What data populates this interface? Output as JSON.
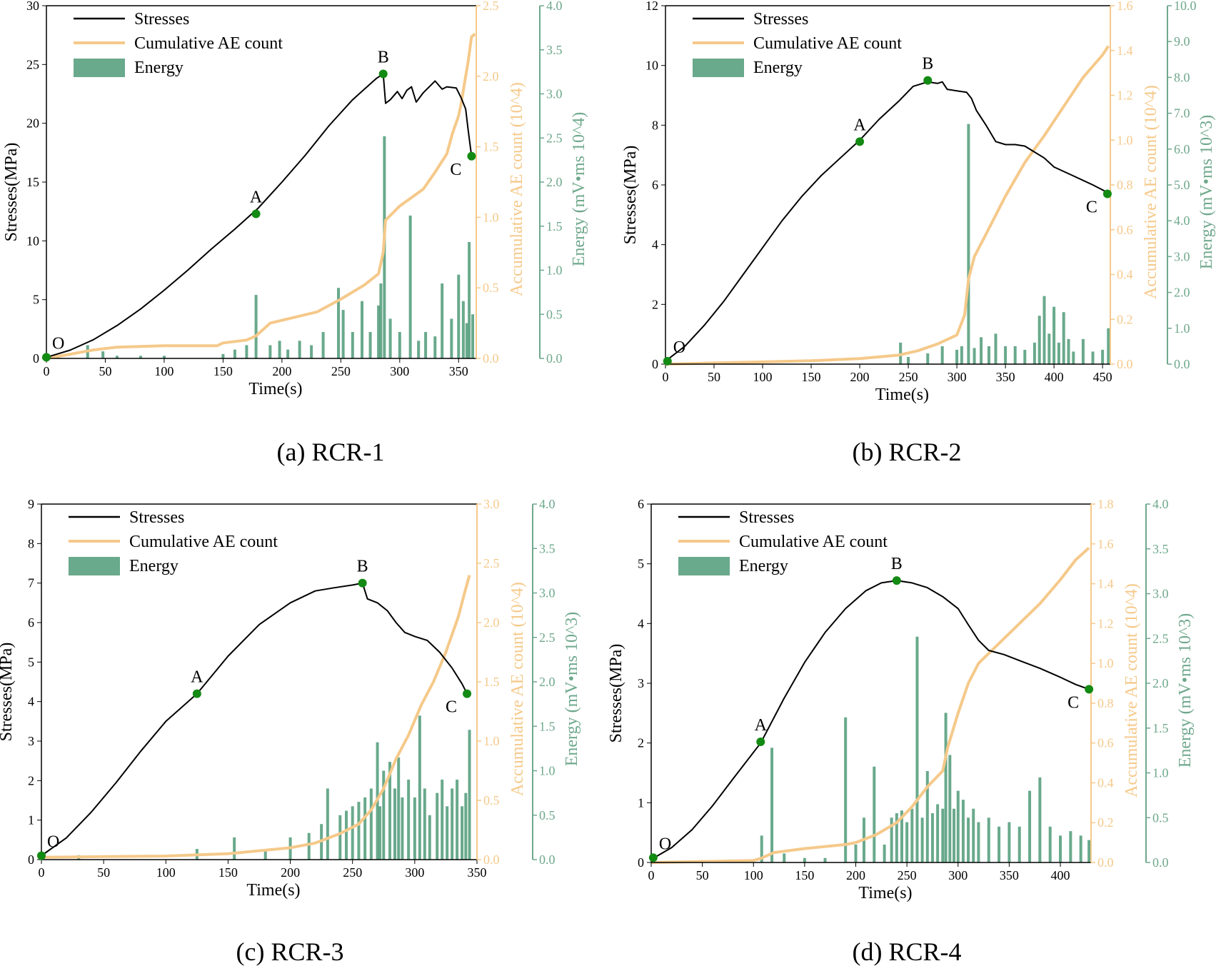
{
  "colors": {
    "stress": "#000000",
    "cumulative": "#f5c98a",
    "energy": "#6fa88c",
    "energy_fill": "#4f9a78",
    "point": "#138a13"
  },
  "chart_data": [
    {
      "type": "line",
      "caption": "(a)  RCR-1",
      "xlabel": "Time(s)",
      "ylabel": "Stresses(MPa)",
      "y2label": "Accumulative AE count (10^4)",
      "y3label": "Energy (mV•ms 10^4)",
      "xlim": [
        0,
        365
      ],
      "xticks": [
        0,
        50,
        100,
        150,
        200,
        250,
        300,
        350
      ],
      "ylim": [
        0,
        30
      ],
      "yticks": [
        0,
        5,
        10,
        15,
        20,
        25,
        30
      ],
      "y2lim": [
        0,
        2.5
      ],
      "y2ticks": [
        "0.0",
        "0.5",
        "1.0",
        "1.5",
        "2.0",
        "2.5"
      ],
      "y3lim": [
        0,
        4.0
      ],
      "y3ticks": [
        "0.0",
        "0.5",
        "1.0",
        "1.5",
        "2.0",
        "2.5",
        "3.0",
        "3.5",
        "4.0"
      ],
      "legend": [
        "Stresses",
        "Cumulative AE count",
        "Energy"
      ],
      "legend_position": "top-left",
      "series": [
        {
          "name": "Stresses",
          "axis": "left",
          "x": [
            0,
            20,
            40,
            60,
            80,
            100,
            120,
            140,
            160,
            180,
            200,
            220,
            240,
            260,
            280,
            286,
            288,
            292,
            298,
            302,
            306,
            310,
            314,
            320,
            330,
            336,
            340,
            348,
            352,
            356,
            358,
            361
          ],
          "y": [
            0.1,
            0.7,
            1.6,
            2.8,
            4.2,
            5.8,
            7.5,
            9.3,
            11.0,
            12.8,
            15.0,
            17.3,
            19.8,
            22.0,
            23.8,
            24.2,
            21.7,
            22.0,
            22.7,
            22.1,
            22.8,
            23.1,
            21.8,
            22.6,
            23.6,
            22.9,
            23.1,
            23.0,
            22.2,
            21.2,
            19.5,
            17.2
          ]
        },
        {
          "name": "Cumulative AE count",
          "axis": "right",
          "x": [
            0,
            20,
            40,
            60,
            100,
            145,
            150,
            170,
            178,
            190,
            210,
            230,
            250,
            270,
            282,
            286,
            288,
            300,
            320,
            330,
            340,
            345,
            350,
            352,
            355,
            358,
            361,
            364
          ],
          "y": [
            0,
            0.03,
            0.06,
            0.08,
            0.09,
            0.09,
            0.11,
            0.13,
            0.16,
            0.25,
            0.29,
            0.33,
            0.42,
            0.52,
            0.6,
            0.75,
            0.98,
            1.08,
            1.2,
            1.32,
            1.45,
            1.6,
            1.72,
            1.8,
            1.95,
            2.1,
            2.28,
            2.3
          ]
        },
        {
          "name": "Energy",
          "axis": "right2",
          "type": "bar",
          "x": [
            10,
            35,
            48,
            60,
            80,
            100,
            150,
            160,
            170,
            178,
            190,
            198,
            205,
            215,
            225,
            235,
            248,
            252,
            260,
            268,
            275,
            282,
            284,
            287,
            292,
            300,
            309,
            316,
            322,
            330,
            336,
            344,
            350,
            354,
            357,
            359,
            362
          ],
          "y": [
            0.02,
            0.15,
            0.08,
            0.03,
            0.03,
            0.03,
            0.05,
            0.1,
            0.15,
            0.72,
            0.15,
            0.2,
            0.1,
            0.2,
            0.15,
            0.3,
            0.8,
            0.55,
            0.3,
            0.65,
            0.3,
            0.6,
            0.85,
            2.52,
            0.45,
            0.3,
            1.62,
            0.2,
            0.3,
            0.25,
            0.85,
            0.45,
            0.95,
            0.65,
            0.4,
            1.32,
            0.5
          ]
        }
      ],
      "points": [
        {
          "label": "O",
          "x": 0,
          "y": 0.1
        },
        {
          "label": "A",
          "x": 178,
          "y": 12.3
        },
        {
          "label": "B",
          "x": 286,
          "y": 24.2
        },
        {
          "label": "C",
          "x": 361,
          "y": 17.2
        }
      ]
    },
    {
      "type": "line",
      "caption": "(b)  RCR-2",
      "xlabel": "Time(s)",
      "ylabel": "Stresses(MPa)",
      "y2label": "Accumulative AE count (10^4)",
      "y3label": "Energy (mV•ms 10^3)",
      "xlim": [
        0,
        458
      ],
      "xticks": [
        0,
        50,
        100,
        150,
        200,
        250,
        300,
        350,
        400,
        450
      ],
      "ylim": [
        0,
        12
      ],
      "yticks": [
        0,
        2,
        4,
        6,
        8,
        10,
        12
      ],
      "y2lim": [
        0,
        1.6
      ],
      "y2ticks": [
        "0.0",
        "0.2",
        "0.4",
        "0.6",
        "0.8",
        "1.0",
        "1.2",
        "1.4",
        "1.6"
      ],
      "y3lim": [
        0,
        10.0
      ],
      "y3ticks": [
        "0.0",
        "1.0",
        "2.0",
        "3.0",
        "4.0",
        "5.0",
        "6.0",
        "7.0",
        "8.0",
        "9.0",
        "10.0"
      ],
      "legend": [
        "Stresses",
        "Cumulative AE count",
        "Energy"
      ],
      "legend_position": "top-left",
      "series": [
        {
          "name": "Stresses",
          "axis": "left",
          "x": [
            0,
            20,
            40,
            60,
            80,
            100,
            120,
            140,
            160,
            180,
            200,
            220,
            240,
            255,
            270,
            280,
            285,
            290,
            300,
            310,
            315,
            320,
            330,
            340,
            350,
            360,
            370,
            380,
            390,
            400,
            420,
            440,
            455
          ],
          "y": [
            0.1,
            0.6,
            1.3,
            2.1,
            3.0,
            3.9,
            4.8,
            5.6,
            6.3,
            6.9,
            7.5,
            8.2,
            8.8,
            9.3,
            9.45,
            9.4,
            9.45,
            9.2,
            9.15,
            9.1,
            8.9,
            8.5,
            8.0,
            7.45,
            7.35,
            7.35,
            7.3,
            7.1,
            6.9,
            6.6,
            6.3,
            6.0,
            5.75
          ]
        },
        {
          "name": "Cumulative AE count",
          "axis": "right",
          "x": [
            0,
            50,
            100,
            150,
            200,
            240,
            260,
            280,
            300,
            308,
            312,
            318,
            330,
            350,
            370,
            390,
            410,
            430,
            450,
            456
          ],
          "y": [
            0,
            0.005,
            0.01,
            0.015,
            0.025,
            0.04,
            0.06,
            0.09,
            0.13,
            0.22,
            0.38,
            0.48,
            0.58,
            0.75,
            0.9,
            1.02,
            1.15,
            1.28,
            1.38,
            1.42
          ]
        },
        {
          "name": "Energy",
          "axis": "right2",
          "type": "bar",
          "x": [
            5,
            242,
            250,
            270,
            285,
            300,
            305,
            312,
            318,
            325,
            333,
            340,
            350,
            360,
            370,
            380,
            385,
            390,
            395,
            400,
            405,
            410,
            415,
            420,
            430,
            440,
            450,
            456
          ],
          "y": [
            0.1,
            0.6,
            0.2,
            0.3,
            0.5,
            0.4,
            0.5,
            6.7,
            0.45,
            0.75,
            0.5,
            0.85,
            0.5,
            0.5,
            0.4,
            0.6,
            1.35,
            1.9,
            0.85,
            1.6,
            0.6,
            1.45,
            0.7,
            0.35,
            0.7,
            0.35,
            0.4,
            1.0
          ]
        }
      ],
      "points": [
        {
          "label": "O",
          "x": 2,
          "y": 0.1
        },
        {
          "label": "A",
          "x": 200,
          "y": 7.45
        },
        {
          "label": "B",
          "x": 270,
          "y": 9.5
        },
        {
          "label": "C",
          "x": 455,
          "y": 5.7
        }
      ]
    },
    {
      "type": "line",
      "caption": "(c)  RCR-3",
      "xlabel": "Time(s)",
      "ylabel": "Stresses(MPa)",
      "y2label": "Accumulative AE count (10^4)",
      "y3label": "Energy (mV•ms 10^3)",
      "xlim": [
        0,
        350
      ],
      "xticks": [
        0,
        50,
        100,
        150,
        200,
        250,
        300,
        350
      ],
      "ylim": [
        0,
        9
      ],
      "yticks": [
        0,
        1,
        2,
        3,
        4,
        5,
        6,
        7,
        8,
        9
      ],
      "y2lim": [
        0,
        3.0
      ],
      "y2ticks": [
        "0.0",
        "0.5",
        "1.0",
        "1.5",
        "2.0",
        "2.5",
        "3.0"
      ],
      "y3lim": [
        0,
        4.0
      ],
      "y3ticks": [
        "0.0",
        "0.5",
        "1.0",
        "1.5",
        "2.0",
        "2.5",
        "3.0",
        "3.5",
        "4.0"
      ],
      "legend": [
        "Stresses",
        "Cumulative AE count",
        "Energy"
      ],
      "legend_position": "top-left",
      "series": [
        {
          "name": "Stresses",
          "axis": "left",
          "x": [
            0,
            20,
            40,
            60,
            80,
            100,
            125,
            150,
            175,
            200,
            220,
            235,
            250,
            258,
            262,
            270,
            278,
            285,
            292,
            300,
            310,
            320,
            330,
            338,
            342
          ],
          "y": [
            0.1,
            0.55,
            1.2,
            1.95,
            2.75,
            3.5,
            4.2,
            5.15,
            5.95,
            6.5,
            6.8,
            6.88,
            6.95,
            7.0,
            6.6,
            6.5,
            6.3,
            6.0,
            5.75,
            5.65,
            5.55,
            5.25,
            4.85,
            4.45,
            4.2
          ]
        },
        {
          "name": "Cumulative AE count",
          "axis": "right",
          "x": [
            0,
            50,
            100,
            150,
            200,
            220,
            240,
            255,
            265,
            275,
            285,
            295,
            305,
            315,
            325,
            335,
            340,
            344
          ],
          "y": [
            0.02,
            0.025,
            0.03,
            0.05,
            0.1,
            0.14,
            0.22,
            0.3,
            0.42,
            0.6,
            0.85,
            1.05,
            1.3,
            1.5,
            1.75,
            2.05,
            2.25,
            2.4
          ]
        },
        {
          "name": "Energy",
          "axis": "right2",
          "type": "bar",
          "x": [
            30,
            125,
            155,
            180,
            200,
            215,
            225,
            230,
            240,
            245,
            250,
            255,
            260,
            265,
            270,
            272,
            275,
            280,
            284,
            287,
            290,
            295,
            300,
            304,
            308,
            312,
            318,
            322,
            326,
            330,
            334,
            338,
            341,
            344
          ],
          "y": [
            0.05,
            0.12,
            0.25,
            0.1,
            0.25,
            0.3,
            0.4,
            0.8,
            0.5,
            0.55,
            0.6,
            0.65,
            0.7,
            0.8,
            1.32,
            0.6,
            1.0,
            1.1,
            0.8,
            1.15,
            0.7,
            0.9,
            0.7,
            1.62,
            0.8,
            0.5,
            0.75,
            0.9,
            0.6,
            0.8,
            0.9,
            0.6,
            0.75,
            1.46
          ]
        }
      ],
      "points": [
        {
          "label": "O",
          "x": 0,
          "y": 0.1
        },
        {
          "label": "A",
          "x": 125,
          "y": 4.2
        },
        {
          "label": "B",
          "x": 258,
          "y": 7.0
        },
        {
          "label": "C",
          "x": 342,
          "y": 4.2
        }
      ]
    },
    {
      "type": "line",
      "caption": "(d)  RCR-4",
      "xlabel": "Time(s)",
      "ylabel": "Stresses(MPa)",
      "y2label": "Accumulative AE count (10^4)",
      "y3label": "Energy (mV•ms 10^3)",
      "xlim": [
        0,
        430
      ],
      "xticks": [
        0,
        50,
        100,
        150,
        200,
        250,
        300,
        350,
        400
      ],
      "ylim": [
        0,
        6
      ],
      "yticks": [
        0,
        1,
        2,
        3,
        4,
        5,
        6
      ],
      "y2lim": [
        0,
        1.8
      ],
      "y2ticks": [
        "0.0",
        "0.2",
        "0.4",
        "0.6",
        "0.8",
        "1.0",
        "1.2",
        "1.4",
        "1.6",
        "1.8"
      ],
      "y3lim": [
        0,
        4.0
      ],
      "y3ticks": [
        "0.0",
        "0.5",
        "1.0",
        "1.5",
        "2.0",
        "2.5",
        "3.0",
        "3.5",
        "4.0"
      ],
      "legend": [
        "Stresses",
        "Cumulative AE count",
        "Energy"
      ],
      "legend_position": "top-left",
      "series": [
        {
          "name": "Stresses",
          "axis": "left",
          "x": [
            0,
            20,
            40,
            60,
            80,
            107,
            130,
            150,
            170,
            190,
            210,
            225,
            240,
            255,
            270,
            285,
            300,
            310,
            320,
            330,
            345,
            360,
            380,
            400,
            415,
            428
          ],
          "y": [
            0.05,
            0.25,
            0.55,
            0.95,
            1.4,
            2.0,
            2.75,
            3.35,
            3.85,
            4.25,
            4.55,
            4.68,
            4.72,
            4.68,
            4.6,
            4.45,
            4.25,
            3.98,
            3.72,
            3.55,
            3.48,
            3.38,
            3.25,
            3.1,
            2.98,
            2.9
          ]
        },
        {
          "name": "Cumulative AE count",
          "axis": "right",
          "x": [
            0,
            50,
            100,
            107,
            120,
            150,
            190,
            200,
            220,
            240,
            255,
            270,
            285,
            290,
            300,
            310,
            320,
            340,
            360,
            380,
            400,
            415,
            428
          ],
          "y": [
            0,
            0.005,
            0.01,
            0.02,
            0.05,
            0.07,
            0.09,
            0.1,
            0.14,
            0.2,
            0.28,
            0.38,
            0.46,
            0.58,
            0.75,
            0.9,
            1.0,
            1.1,
            1.2,
            1.3,
            1.42,
            1.52,
            1.58
          ]
        },
        {
          "name": "Energy",
          "axis": "right2",
          "type": "bar",
          "x": [
            108,
            118,
            130,
            150,
            170,
            190,
            200,
            208,
            218,
            228,
            235,
            240,
            245,
            250,
            255,
            260,
            265,
            270,
            275,
            280,
            285,
            288,
            292,
            296,
            300,
            305,
            310,
            315,
            320,
            330,
            340,
            350,
            360,
            370,
            380,
            390,
            400,
            410,
            420,
            428
          ],
          "y": [
            0.3,
            1.28,
            0.1,
            0.05,
            0.05,
            1.62,
            0.2,
            0.5,
            1.07,
            0.2,
            0.5,
            0.55,
            0.58,
            0.45,
            0.6,
            2.52,
            0.5,
            1.02,
            0.55,
            0.65,
            0.6,
            1.67,
            1.2,
            0.6,
            0.8,
            0.7,
            0.5,
            0.6,
            0.45,
            0.5,
            0.4,
            0.45,
            0.4,
            0.8,
            0.95,
            0.4,
            0.3,
            0.35,
            0.3,
            0.25
          ]
        }
      ],
      "points": [
        {
          "label": "O",
          "x": 2,
          "y": 0.08
        },
        {
          "label": "A",
          "x": 107,
          "y": 2.02
        },
        {
          "label": "B",
          "x": 240,
          "y": 4.72
        },
        {
          "label": "C",
          "x": 428,
          "y": 2.9
        }
      ]
    }
  ]
}
